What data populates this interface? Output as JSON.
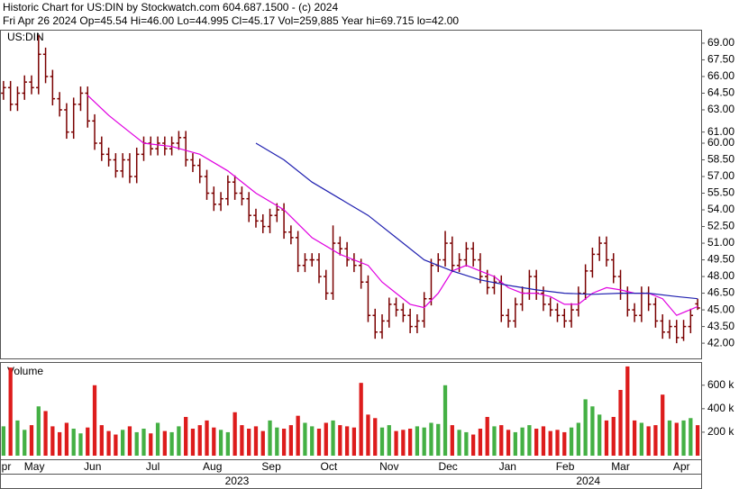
{
  "chart_data": {
    "type": "ohlc",
    "title": "Historic Chart for US:DIN by Stockwatch.com 604.687.1500 - (c) 2024",
    "subtitle": "Fri Apr 26 2024  Op=45.54  Hi=46.00  Lo=44.995  Cl=45.17  Vol=259,885  Year hi=69.715  lo=42.00",
    "symbol_label": "US:DIN",
    "bar_color": "#7a0000",
    "xlim": [
      -0.5,
      99.5
    ],
    "ylim": [
      40.63,
      70.13
    ],
    "yticks": [
      {
        "value": 69,
        "label": "69.00"
      },
      {
        "value": 67.5,
        "label": "67.50"
      },
      {
        "value": 66,
        "label": "66.00"
      },
      {
        "value": 64.5,
        "label": "64.50"
      },
      {
        "value": 63,
        "label": "63.00"
      },
      {
        "value": 61,
        "label": "61.00"
      },
      {
        "value": 60,
        "label": "60.00"
      },
      {
        "value": 58.5,
        "label": "58.50"
      },
      {
        "value": 57,
        "label": "57.00"
      },
      {
        "value": 55.5,
        "label": "55.50"
      },
      {
        "value": 54,
        "label": "54.00"
      },
      {
        "value": 52.5,
        "label": "52.50"
      },
      {
        "value": 51,
        "label": "51.00"
      },
      {
        "value": 49.5,
        "label": "49.50"
      },
      {
        "value": 48,
        "label": "48.00"
      },
      {
        "value": 46.5,
        "label": "46.50"
      },
      {
        "value": 45,
        "label": "45.00"
      },
      {
        "value": 43.5,
        "label": "43.50"
      },
      {
        "value": 42,
        "label": "42.00"
      }
    ],
    "xticks": [
      {
        "value": 0.4,
        "label": "pr"
      },
      {
        "value": 4.4,
        "label": "May"
      },
      {
        "value": 12.7,
        "label": "Jun"
      },
      {
        "value": 21.3,
        "label": "Jul"
      },
      {
        "value": 29.8,
        "label": "Aug"
      },
      {
        "value": 38.2,
        "label": "Sep"
      },
      {
        "value": 46.4,
        "label": "Oct"
      },
      {
        "value": 55,
        "label": "Nov"
      },
      {
        "value": 63.4,
        "label": "Dec"
      },
      {
        "value": 71.9,
        "label": "Jan"
      },
      {
        "value": 80.1,
        "label": "Feb"
      },
      {
        "value": 88,
        "label": "Mar"
      },
      {
        "value": 96.7,
        "label": "Apr"
      }
    ],
    "years": [
      {
        "value": 33.3,
        "label": "2023"
      },
      {
        "value": 83.4,
        "label": "2024"
      }
    ],
    "open": [
      64.5,
      65.0,
      63.5,
      64.5,
      65.5,
      65.0,
      68.0,
      66.0,
      64.0,
      63.0,
      61.0,
      63.5,
      64.5,
      62.0,
      60.0,
      59.0,
      58.5,
      57.5,
      58.5,
      57.0,
      59.0,
      60.0,
      59.5,
      60.0,
      59.5,
      60.0,
      60.5,
      58.5,
      58.0,
      57.0,
      55.5,
      54.5,
      55.0,
      56.5,
      55.5,
      55.0,
      53.5,
      53.0,
      52.5,
      53.5,
      54.0,
      52.0,
      51.5,
      49.0,
      49.5,
      49.5,
      48.0,
      46.5,
      51.0,
      50.5,
      49.5,
      49.0,
      47.5,
      44.5,
      43.0,
      44.0,
      45.5,
      45.0,
      44.5,
      43.5,
      44.0,
      46.0,
      49.0,
      49.5,
      51.0,
      49.0,
      49.5,
      50.5,
      49.5,
      48.0,
      47.0,
      47.5,
      44.5,
      44.0,
      45.5,
      46.5,
      48.0,
      46.5,
      45.5,
      45.0,
      44.5,
      44.0,
      45.0,
      46.5,
      48.5,
      50.0,
      51.0,
      49.5,
      48.0,
      46.5,
      45.0,
      44.5,
      46.5,
      45.5,
      44.0,
      43.0,
      43.5,
      42.5,
      43.5,
      45.54
    ],
    "high": [
      65.6,
      65.6,
      65.1,
      66.1,
      66.1,
      69.715,
      68.6,
      66.6,
      64.6,
      63.6,
      64.1,
      65.1,
      65.1,
      62.6,
      60.6,
      59.6,
      59.1,
      59.1,
      59.1,
      59.6,
      60.6,
      60.6,
      60.6,
      60.6,
      60.6,
      61.1,
      61.1,
      59.1,
      58.6,
      57.6,
      56.1,
      55.6,
      57.1,
      57.1,
      56.1,
      55.6,
      54.1,
      53.6,
      54.1,
      54.6,
      54.6,
      52.6,
      52.1,
      50.1,
      50.1,
      50.1,
      48.6,
      52.6,
      51.6,
      51.1,
      50.1,
      49.6,
      48.1,
      45.1,
      44.6,
      46.1,
      46.1,
      45.6,
      45.1,
      44.6,
      46.6,
      49.6,
      50.1,
      52.1,
      51.6,
      50.1,
      51.1,
      51.1,
      50.1,
      48.6,
      48.1,
      48.1,
      45.1,
      46.1,
      47.1,
      48.6,
      48.6,
      47.1,
      46.1,
      45.6,
      45.1,
      45.6,
      47.1,
      49.1,
      50.6,
      51.6,
      51.6,
      50.1,
      48.6,
      47.1,
      45.6,
      47.1,
      47.1,
      46.1,
      44.6,
      44.1,
      44.1,
      44.1,
      45.1,
      46.0
    ],
    "low": [
      63.9,
      62.9,
      62.9,
      63.9,
      64.4,
      64.4,
      65.4,
      63.4,
      62.4,
      60.4,
      60.4,
      62.9,
      61.4,
      59.4,
      58.4,
      57.9,
      56.9,
      56.9,
      56.4,
      56.4,
      58.4,
      58.9,
      58.9,
      58.9,
      58.9,
      59.4,
      57.9,
      57.4,
      56.4,
      54.9,
      53.9,
      53.9,
      54.4,
      54.9,
      54.4,
      52.9,
      52.4,
      51.9,
      51.9,
      52.9,
      51.4,
      50.9,
      48.4,
      48.4,
      48.9,
      47.4,
      45.9,
      45.9,
      49.9,
      48.9,
      48.4,
      46.9,
      43.9,
      42.4,
      42.4,
      43.4,
      44.4,
      43.9,
      42.9,
      42.9,
      43.4,
      45.4,
      48.4,
      48.9,
      48.4,
      48.4,
      48.9,
      48.9,
      47.4,
      46.4,
      46.4,
      43.9,
      43.4,
      43.4,
      44.9,
      45.9,
      45.9,
      44.9,
      44.4,
      43.9,
      43.4,
      43.4,
      44.4,
      45.9,
      47.9,
      49.4,
      48.9,
      47.4,
      45.9,
      44.4,
      43.9,
      43.9,
      44.9,
      43.4,
      42.4,
      42.4,
      42.0,
      42.2,
      42.9,
      44.995
    ],
    "close": [
      65.0,
      63.5,
      64.5,
      65.5,
      65.0,
      68.0,
      66.0,
      64.0,
      63.0,
      61.0,
      63.5,
      64.5,
      62.0,
      60.0,
      59.0,
      58.5,
      57.5,
      58.5,
      57.0,
      59.0,
      60.0,
      59.5,
      60.0,
      59.5,
      60.0,
      60.5,
      58.5,
      58.0,
      57.0,
      55.5,
      54.5,
      55.0,
      56.5,
      55.5,
      55.0,
      53.5,
      53.0,
      52.5,
      53.5,
      54.0,
      52.0,
      51.5,
      49.0,
      49.5,
      49.5,
      48.0,
      46.5,
      51.0,
      50.5,
      49.5,
      49.0,
      47.5,
      44.5,
      43.0,
      44.0,
      45.5,
      45.0,
      44.5,
      43.5,
      44.0,
      46.0,
      49.0,
      49.5,
      51.0,
      49.0,
      49.5,
      50.5,
      49.5,
      48.0,
      47.0,
      47.5,
      44.5,
      44.0,
      45.5,
      46.5,
      48.0,
      46.5,
      45.5,
      45.0,
      44.5,
      44.0,
      45.0,
      46.5,
      48.5,
      50.0,
      51.0,
      49.5,
      48.0,
      46.5,
      45.0,
      44.5,
      46.5,
      45.5,
      44.0,
      43.0,
      43.5,
      42.5,
      43.5,
      44.5,
      45.17
    ],
    "series": [
      {
        "color": "#e000e0",
        "x": [
          12,
          15,
          18,
          20,
          24,
          28,
          32,
          36,
          40,
          44,
          48,
          52,
          54,
          56,
          58,
          60,
          62,
          64,
          66,
          68,
          70,
          72,
          74,
          76,
          78,
          80,
          82,
          84,
          86,
          88,
          90,
          92,
          94,
          96,
          99
        ],
        "values": [
          64.3,
          62.5,
          61,
          60,
          59.7,
          59,
          57.5,
          55.5,
          54,
          51.5,
          50,
          49,
          47.5,
          46.5,
          45.5,
          45.2,
          46.5,
          48.5,
          49,
          48.5,
          48,
          47,
          46.5,
          46.5,
          46.2,
          45.5,
          45.5,
          46.5,
          47,
          46.8,
          46.5,
          46.5,
          46,
          44.5,
          45.3
        ]
      },
      {
        "color": "#2020b0",
        "x": [
          36,
          40,
          44,
          48,
          52,
          56,
          60,
          64,
          68,
          72,
          76,
          80,
          84,
          88,
          92,
          96,
          99
        ],
        "values": [
          60,
          58.5,
          56.5,
          55,
          53.5,
          51.5,
          49.5,
          48.5,
          47.7,
          47.2,
          46.8,
          46.5,
          46.4,
          46.5,
          46.5,
          46.2,
          46
        ]
      }
    ],
    "volume": {
      "label": "Volume",
      "up_color": "#44b044",
      "down_color": "#dd1c1c",
      "ylim": [
        0,
        790000
      ],
      "yticks": [
        {
          "value": 600000,
          "label": "600 k"
        },
        {
          "value": 400000,
          "label": "400 k"
        },
        {
          "value": 200000,
          "label": "200 k"
        }
      ],
      "values": [
        250000,
        750000,
        300000,
        220000,
        260000,
        420000,
        380000,
        250000,
        200000,
        280000,
        230000,
        190000,
        240000,
        600000,
        260000,
        210000,
        180000,
        220000,
        250000,
        200000,
        230000,
        190000,
        280000,
        210000,
        200000,
        250000,
        330000,
        230000,
        260000,
        300000,
        240000,
        220000,
        200000,
        370000,
        260000,
        230000,
        250000,
        210000,
        300000,
        240000,
        230000,
        260000,
        340000,
        280000,
        250000,
        230000,
        280000,
        300000,
        260000,
        250000,
        240000,
        620000,
        350000,
        320000,
        240000,
        260000,
        210000,
        220000,
        230000,
        250000,
        240000,
        280000,
        270000,
        600000,
        260000,
        220000,
        200000,
        180000,
        230000,
        330000,
        250000,
        260000,
        220000,
        200000,
        240000,
        260000,
        230000,
        250000,
        210000,
        220000,
        200000,
        240000,
        280000,
        480000,
        420000,
        350000,
        300000,
        330000,
        560000,
        760000,
        300000,
        280000,
        250000,
        260000,
        520000,
        300000,
        280000,
        300000,
        320000,
        259885
      ]
    }
  }
}
